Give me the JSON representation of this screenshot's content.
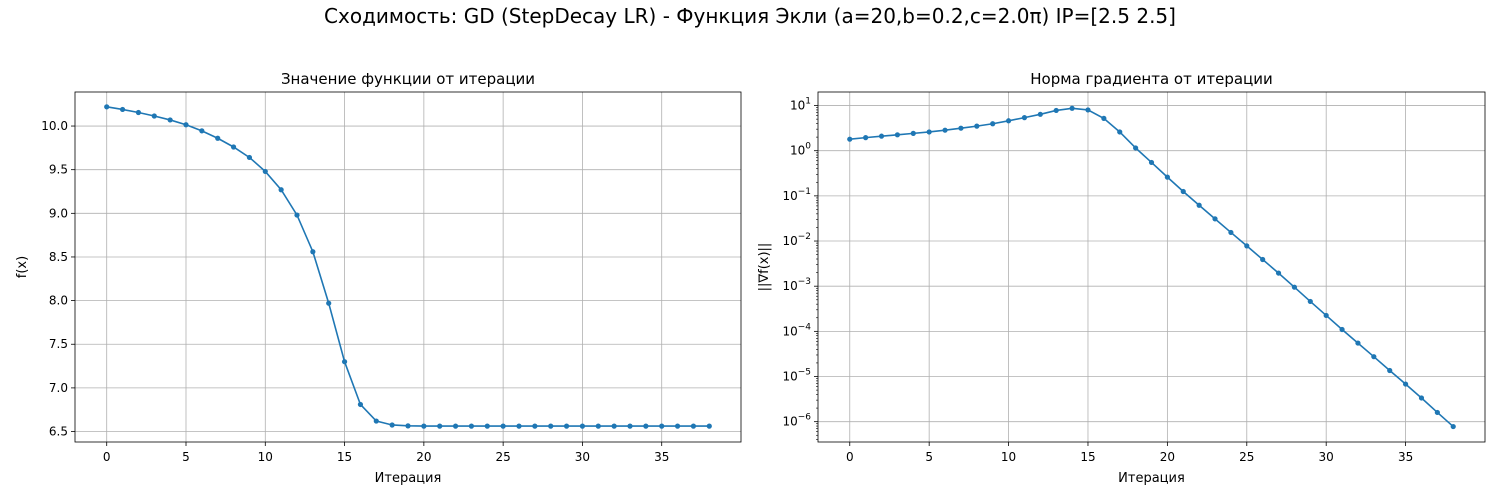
{
  "suptitle": "Сходимость: GD (StepDecay LR) - Функция Экли (a=20,b=0.2,c=2.0π) IP=[2.5 2.5]",
  "colors": {
    "line": "#1f77b4",
    "grid": "#b0b0b0",
    "axes": "#000000"
  },
  "chart_data": [
    {
      "type": "line",
      "title": "Значение функции от итерации",
      "xlabel": "Итерация",
      "ylabel": "f(x)",
      "xlim": [
        -2,
        40
      ],
      "ylim": [
        6.38,
        10.39
      ],
      "xticks": [
        0,
        5,
        10,
        15,
        20,
        25,
        30,
        35
      ],
      "yticks": [
        6.5,
        7.0,
        7.5,
        8.0,
        8.5,
        9.0,
        9.5,
        10.0
      ],
      "yscale": "linear",
      "grid": true,
      "marker": "circle",
      "x": [
        0,
        1,
        2,
        3,
        4,
        5,
        6,
        7,
        8,
        9,
        10,
        11,
        12,
        13,
        14,
        15,
        16,
        17,
        18,
        19,
        20,
        21,
        22,
        23,
        24,
        25,
        26,
        27,
        28,
        29,
        30,
        31,
        32,
        33,
        34,
        35,
        36,
        37,
        38
      ],
      "y": [
        10.22,
        10.19,
        10.155,
        10.115,
        10.07,
        10.015,
        9.945,
        9.86,
        9.76,
        9.64,
        9.48,
        9.27,
        8.98,
        8.56,
        7.97,
        7.3,
        6.81,
        6.62,
        6.575,
        6.565,
        6.562,
        6.562,
        6.562,
        6.562,
        6.562,
        6.562,
        6.562,
        6.562,
        6.562,
        6.562,
        6.562,
        6.562,
        6.562,
        6.562,
        6.562,
        6.562,
        6.562,
        6.562,
        6.562
      ]
    },
    {
      "type": "line",
      "title": "Норма градиента от итерации",
      "xlabel": "Итерация",
      "ylabel": "||∇f(x)||",
      "xlim": [
        -2,
        40
      ],
      "ylim_log10": [
        -6.45,
        1.3
      ],
      "xticks": [
        0,
        5,
        10,
        15,
        20,
        25,
        30,
        35
      ],
      "ytick_exponents": [
        1,
        0,
        -1,
        -2,
        -3,
        -4,
        -5,
        -6
      ],
      "yscale": "log",
      "grid": true,
      "marker": "circle",
      "x": [
        0,
        1,
        2,
        3,
        4,
        5,
        6,
        7,
        8,
        9,
        10,
        11,
        12,
        13,
        14,
        15,
        16,
        17,
        18,
        19,
        20,
        21,
        22,
        23,
        24,
        25,
        26,
        27,
        28,
        29,
        30,
        31,
        32,
        33,
        34,
        35,
        36,
        37,
        38
      ],
      "y": [
        1.8,
        1.95,
        2.1,
        2.25,
        2.42,
        2.6,
        2.85,
        3.15,
        3.5,
        3.95,
        4.6,
        5.4,
        6.4,
        7.8,
        8.7,
        8.0,
        5.2,
        2.6,
        1.15,
        0.55,
        0.26,
        0.125,
        0.062,
        0.031,
        0.0155,
        0.0078,
        0.0039,
        0.00195,
        0.00095,
        0.00046,
        0.000225,
        0.00011,
        5.5e-05,
        2.75e-05,
        1.36e-05,
        6.8e-06,
        3.35e-06,
        1.6e-06,
        7.8e-07
      ]
    }
  ]
}
